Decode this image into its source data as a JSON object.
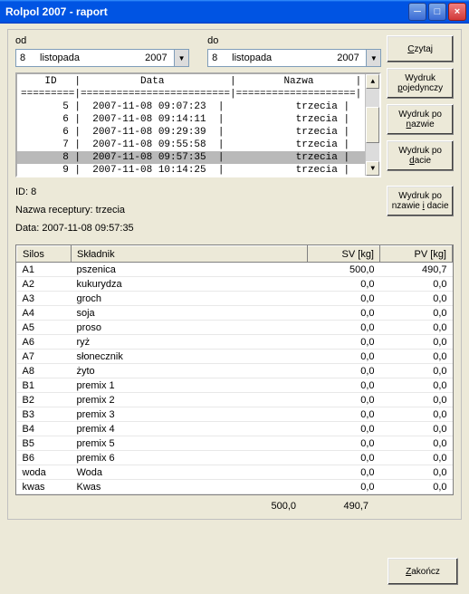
{
  "window": {
    "title": "Rolpol 2007 - raport"
  },
  "dates": {
    "od_label": "od",
    "do_label": "do",
    "od": {
      "day": "8",
      "month": "listopada",
      "year": "2007"
    },
    "do": {
      "day": "8",
      "month": "listopada",
      "year": "2007"
    }
  },
  "buttons": {
    "czytaj": "Czytaj",
    "wydruk_poj": "Wydruk pojedynczy",
    "wydruk_nazwa": "Wydruk po nazwie",
    "wydruk_data": "Wydruk po dacie",
    "wydruk_nazdata": "Wydruk po nzawie i dacie",
    "zakoncz": "Zakończ"
  },
  "list": {
    "header": "    ID   |          Data           |        Nazwa       |",
    "divider": "=========|=========================|====================|",
    "rows": [
      "       5 |  2007-11-08 09:07:23  |            trzecia |",
      "       6 |  2007-11-08 09:14:11  |            trzecia |",
      "       6 |  2007-11-08 09:29:39  |            trzecia |",
      "       7 |  2007-11-08 09:55:58  |            trzecia |",
      "       8 |  2007-11-08 09:57:35  |            trzecia |",
      "       9 |  2007-11-08 10:14:25  |            trzecia |"
    ],
    "selected_index": 4
  },
  "info": {
    "id_label": "ID: 8",
    "nazwa_label": "Nazwa receptury: trzecia",
    "data_label": "Data: 2007-11-08 09:57:35"
  },
  "grid": {
    "headers": {
      "silos": "Silos",
      "skladnik": "Składnik",
      "sv": "SV [kg]",
      "pv": "PV [kg]"
    },
    "rows": [
      {
        "s": "A1",
        "n": "pszenica",
        "sv": "500,0",
        "pv": "490,7"
      },
      {
        "s": "A2",
        "n": "kukurydza",
        "sv": "0,0",
        "pv": "0,0"
      },
      {
        "s": "A3",
        "n": "groch",
        "sv": "0,0",
        "pv": "0,0"
      },
      {
        "s": "A4",
        "n": "soja",
        "sv": "0,0",
        "pv": "0,0"
      },
      {
        "s": "A5",
        "n": "proso",
        "sv": "0,0",
        "pv": "0,0"
      },
      {
        "s": "A6",
        "n": "ryż",
        "sv": "0,0",
        "pv": "0,0"
      },
      {
        "s": "A7",
        "n": "słonecznik",
        "sv": "0,0",
        "pv": "0,0"
      },
      {
        "s": "A8",
        "n": "żyto",
        "sv": "0,0",
        "pv": "0,0"
      },
      {
        "s": "B1",
        "n": "premix 1",
        "sv": "0,0",
        "pv": "0,0"
      },
      {
        "s": "B2",
        "n": "premix 2",
        "sv": "0,0",
        "pv": "0,0"
      },
      {
        "s": "B3",
        "n": "premix 3",
        "sv": "0,0",
        "pv": "0,0"
      },
      {
        "s": "B4",
        "n": "premix 4",
        "sv": "0,0",
        "pv": "0,0"
      },
      {
        "s": "B5",
        "n": "premix 5",
        "sv": "0,0",
        "pv": "0,0"
      },
      {
        "s": "B6",
        "n": "premix 6",
        "sv": "0,0",
        "pv": "0,0"
      },
      {
        "s": "woda",
        "n": "Woda",
        "sv": "0,0",
        "pv": "0,0"
      },
      {
        "s": "kwas",
        "n": "Kwas",
        "sv": "0,0",
        "pv": "0,0"
      }
    ]
  },
  "totals": {
    "sv": "500,0",
    "pv": "490,7"
  }
}
